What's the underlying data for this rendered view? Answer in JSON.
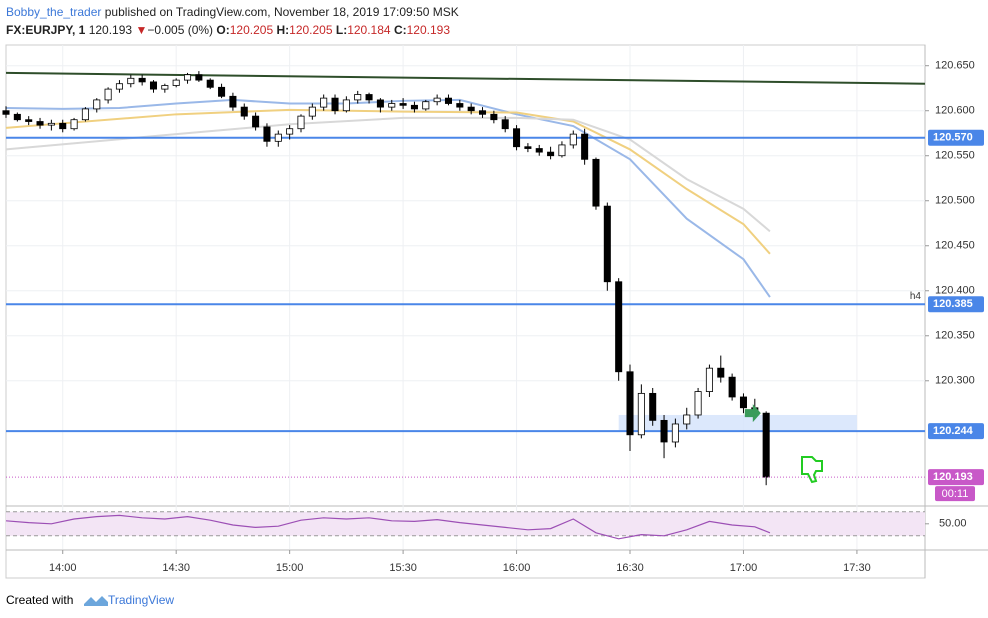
{
  "header": {
    "author": "Bobby_the_trader",
    "published": "published on TradingView.com, November 18, 2019 17:09:50 MSK",
    "symbol": "FX:EURJPY, 1",
    "price": "120.193",
    "arrow": "▼",
    "change": "−0.005 (0%)",
    "o_label": "O:",
    "open": "120.205",
    "h_label": "H:",
    "high": "120.205",
    "l_label": "L:",
    "low": "120.184",
    "c_label": "C:",
    "close": "120.193"
  },
  "chart_data": [
    {
      "type": "candlestick",
      "x": [
        "13:45",
        "13:48",
        "13:51",
        "13:54",
        "13:57",
        "14:00",
        "14:03",
        "14:06",
        "14:09",
        "14:12",
        "14:15",
        "14:18",
        "14:21",
        "14:24",
        "14:27",
        "14:30",
        "14:33",
        "14:36",
        "14:39",
        "14:42",
        "14:45",
        "14:48",
        "14:51",
        "14:54",
        "14:57",
        "15:00",
        "15:03",
        "15:06",
        "15:09",
        "15:12",
        "15:15",
        "15:18",
        "15:21",
        "15:24",
        "15:27",
        "15:30",
        "15:33",
        "15:36",
        "15:39",
        "15:42",
        "15:45",
        "15:48",
        "15:51",
        "15:54",
        "15:57",
        "16:00",
        "16:03",
        "16:06",
        "16:09",
        "16:12",
        "16:15",
        "16:18",
        "16:21",
        "16:24",
        "16:27",
        "16:30",
        "16:33",
        "16:36",
        "16:39",
        "16:42",
        "16:45",
        "16:48",
        "16:51",
        "16:54",
        "16:57",
        "17:00",
        "17:03",
        "17:06"
      ],
      "open": [
        120.6,
        120.596,
        120.59,
        120.588,
        120.584,
        120.586,
        120.58,
        120.59,
        120.602,
        120.612,
        120.624,
        120.63,
        120.636,
        120.632,
        120.624,
        120.628,
        120.634,
        120.64,
        120.634,
        120.626,
        120.616,
        120.604,
        120.594,
        120.582,
        120.566,
        120.574,
        120.58,
        120.594,
        120.604,
        120.614,
        120.6,
        120.612,
        120.618,
        120.612,
        120.604,
        120.608,
        120.606,
        120.602,
        120.61,
        120.614,
        120.608,
        120.604,
        120.6,
        120.596,
        120.59,
        120.58,
        120.56,
        120.558,
        120.554,
        120.55,
        120.562,
        120.574,
        120.546,
        120.494,
        120.41,
        120.31,
        120.24,
        120.286,
        120.256,
        120.232,
        120.252,
        120.262,
        120.288,
        120.314,
        120.304,
        120.282,
        120.27,
        120.264
      ],
      "high": [
        120.605,
        120.598,
        120.594,
        120.592,
        120.59,
        120.59,
        120.592,
        120.604,
        120.614,
        120.626,
        120.634,
        120.64,
        120.64,
        120.634,
        120.63,
        120.636,
        120.642,
        120.644,
        120.636,
        120.63,
        120.62,
        120.608,
        120.598,
        120.586,
        120.578,
        120.584,
        120.596,
        120.608,
        120.618,
        120.618,
        120.616,
        120.622,
        120.62,
        120.614,
        120.612,
        120.614,
        120.61,
        120.612,
        120.618,
        120.618,
        120.612,
        120.608,
        120.604,
        120.6,
        120.594,
        120.584,
        120.564,
        120.562,
        120.56,
        120.566,
        120.578,
        120.58,
        120.548,
        120.498,
        120.414,
        120.318,
        120.296,
        120.292,
        120.262,
        120.258,
        120.27,
        120.292,
        120.318,
        120.328,
        120.308,
        120.286,
        120.28,
        120.266
      ],
      "low": [
        120.592,
        120.588,
        120.584,
        120.58,
        120.578,
        120.576,
        120.578,
        120.588,
        120.598,
        120.608,
        120.62,
        120.626,
        120.628,
        120.62,
        120.62,
        120.626,
        120.63,
        120.632,
        120.624,
        120.614,
        120.6,
        120.59,
        120.578,
        120.56,
        120.56,
        120.568,
        120.576,
        120.59,
        120.6,
        120.596,
        120.598,
        120.608,
        120.608,
        120.598,
        120.6,
        120.602,
        120.598,
        120.6,
        120.606,
        120.606,
        120.6,
        120.596,
        120.592,
        120.586,
        120.576,
        120.556,
        120.554,
        120.55,
        120.546,
        120.548,
        120.558,
        120.54,
        120.49,
        120.4,
        120.3,
        120.222,
        120.236,
        120.25,
        120.214,
        120.226,
        120.246,
        120.258,
        120.282,
        120.298,
        120.278,
        120.264,
        120.258,
        120.184
      ],
      "close": [
        120.596,
        120.59,
        120.588,
        120.584,
        120.586,
        120.58,
        120.59,
        120.602,
        120.612,
        120.624,
        120.63,
        120.636,
        120.632,
        120.624,
        120.628,
        120.634,
        120.64,
        120.634,
        120.626,
        120.616,
        120.604,
        120.594,
        120.582,
        120.566,
        120.574,
        120.58,
        120.594,
        120.604,
        120.614,
        120.6,
        120.612,
        120.618,
        120.612,
        120.604,
        120.608,
        120.606,
        120.602,
        120.61,
        120.614,
        120.608,
        120.604,
        120.6,
        120.596,
        120.59,
        120.58,
        120.56,
        120.558,
        120.554,
        120.55,
        120.562,
        120.574,
        120.546,
        120.494,
        120.41,
        120.31,
        120.24,
        120.286,
        120.256,
        120.232,
        120.252,
        120.262,
        120.288,
        120.314,
        120.304,
        120.282,
        120.27,
        120.264,
        120.193
      ],
      "color_up": "#ffffff",
      "color_down": "#000000",
      "border": "#000000",
      "series": [
        {
          "color": "#9ab8e8",
          "x": [
            "13:45",
            "14:00",
            "14:15",
            "14:30",
            "14:45",
            "15:00",
            "15:15",
            "15:30",
            "15:45",
            "16:00",
            "16:15",
            "16:30",
            "16:45",
            "17:00",
            "17:07"
          ],
          "values": [
            120.603,
            120.602,
            120.603,
            120.608,
            120.612,
            120.608,
            120.608,
            120.611,
            120.612,
            120.596,
            120.583,
            120.546,
            120.48,
            120.435,
            120.393
          ]
        },
        {
          "color": "#f0d080",
          "x": [
            "13:45",
            "14:30",
            "15:00",
            "15:30",
            "16:00",
            "16:15",
            "16:30",
            "16:45",
            "17:00",
            "17:07"
          ],
          "values": [
            120.581,
            120.596,
            120.601,
            120.599,
            120.598,
            120.588,
            120.557,
            120.513,
            120.474,
            120.441
          ]
        },
        {
          "color": "#d8d8d8",
          "x": [
            "13:45",
            "14:30",
            "15:00",
            "15:30",
            "16:00",
            "16:15",
            "16:30",
            "16:45",
            "17:00",
            "17:07"
          ],
          "values": [
            120.557,
            120.574,
            120.585,
            120.592,
            120.592,
            120.59,
            120.568,
            120.524,
            120.491,
            120.466
          ]
        }
      ],
      "trendline": {
        "x": [
          "13:45",
          "17:48"
        ],
        "values": [
          120.642,
          120.63
        ],
        "color": "#2e4d2a"
      },
      "zone": {
        "x": [
          "16:27",
          "17:30"
        ],
        "values": [
          120.245,
          120.262
        ],
        "color": "#d6e4fb"
      },
      "hlines": [
        {
          "value": 120.57,
          "label": "120.570"
        },
        {
          "value": 120.385,
          "label": "120.385"
        },
        {
          "value": 120.244,
          "label": "120.244"
        }
      ],
      "hline_color": "#4a86e8",
      "annotation": "h4",
      "last_price": {
        "value": 120.193,
        "label": "120.193"
      },
      "last_color": "#c858c8",
      "countdown": "00:11",
      "xlim": [
        "13:45",
        "17:48"
      ],
      "xticks": [
        "14:00",
        "14:30",
        "15:00",
        "15:30",
        "16:00",
        "16:30",
        "17:00",
        "17:30"
      ],
      "ylim": [
        120.162,
        120.673
      ],
      "yticks": [
        {
          "value": 120.65,
          "label": "120.650"
        },
        {
          "value": 120.6,
          "label": "120.600"
        },
        {
          "value": 120.55,
          "label": "120.550"
        },
        {
          "value": 120.5,
          "label": "120.500"
        },
        {
          "value": 120.45,
          "label": "120.450"
        },
        {
          "value": 120.4,
          "label": "120.400"
        },
        {
          "value": 120.35,
          "label": "120.350"
        },
        {
          "value": 120.3,
          "label": "120.300"
        }
      ],
      "grid": true
    },
    {
      "type": "line",
      "x": [
        "13:45",
        "13:51",
        "13:57",
        "14:03",
        "14:09",
        "14:15",
        "14:21",
        "14:27",
        "14:33",
        "14:39",
        "14:45",
        "14:51",
        "14:57",
        "15:03",
        "15:09",
        "15:15",
        "15:21",
        "15:27",
        "15:33",
        "15:39",
        "15:45",
        "15:51",
        "15:57",
        "16:03",
        "16:09",
        "16:15",
        "16:21",
        "16:27",
        "16:33",
        "16:39",
        "16:45",
        "16:51",
        "16:57",
        "17:03",
        "17:07"
      ],
      "values": [
        55,
        52,
        50,
        58,
        62,
        64,
        60,
        58,
        62,
        56,
        48,
        44,
        46,
        56,
        60,
        58,
        60,
        55,
        54,
        57,
        52,
        48,
        44,
        40,
        42,
        58,
        35,
        25,
        32,
        30,
        40,
        54,
        48,
        45,
        35
      ],
      "color": "#9c4fb5",
      "bands": [
        30,
        70
      ],
      "band_color": "#f3e5f5",
      "ylim": [
        8,
        78
      ],
      "yticks": [
        {
          "value": 50,
          "label": "50.00"
        }
      ]
    }
  ],
  "footer": {
    "created": "Created with",
    "brand": "TradingView"
  }
}
